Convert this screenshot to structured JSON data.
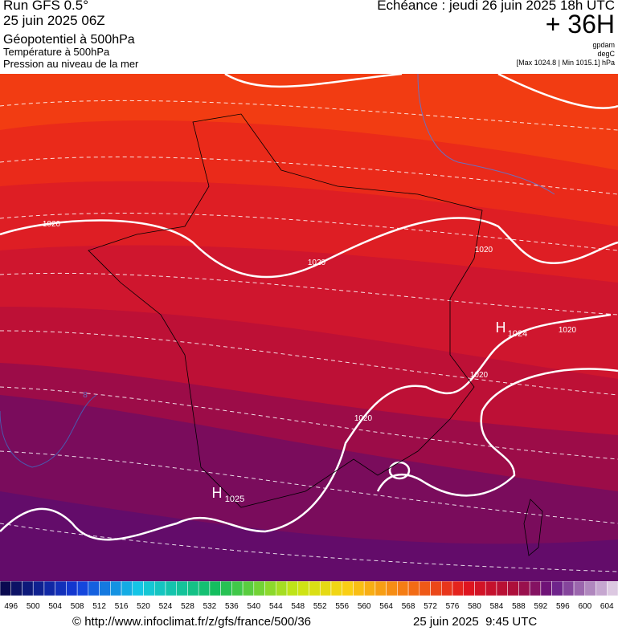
{
  "header": {
    "model": "Run GFS 0.5°",
    "run": "25 juin 2025 06Z",
    "field1": "Géopotentiel à 500hPa",
    "field2": "Température à 500hPa",
    "field3": "Pression au niveau de la mer",
    "echeance": "Echéance : jeudi 26 juin 2025 18h UTC",
    "lead": "+ 36H",
    "unit1": "gpdam",
    "unit2": "degC",
    "unit3": "[Max 1024.8 | Min 1015.1] hPa"
  },
  "map": {
    "labels": [
      "1020",
      "1020",
      "1020",
      "1020",
      "1020",
      "1020",
      "H",
      "1024",
      "H",
      "1025",
      "8"
    ]
  },
  "colorbar": {
    "ticks": [
      496,
      500,
      504,
      508,
      512,
      516,
      520,
      524,
      528,
      532,
      536,
      540,
      544,
      548,
      552,
      556,
      560,
      564,
      568,
      572,
      576,
      580,
      584,
      588,
      592,
      596,
      600,
      604
    ]
  },
  "footer": {
    "source": "© http://www.infoclimat.fr/z/gfs/france/500/36",
    "date": "25 juin 2025  9:45 UTC"
  }
}
